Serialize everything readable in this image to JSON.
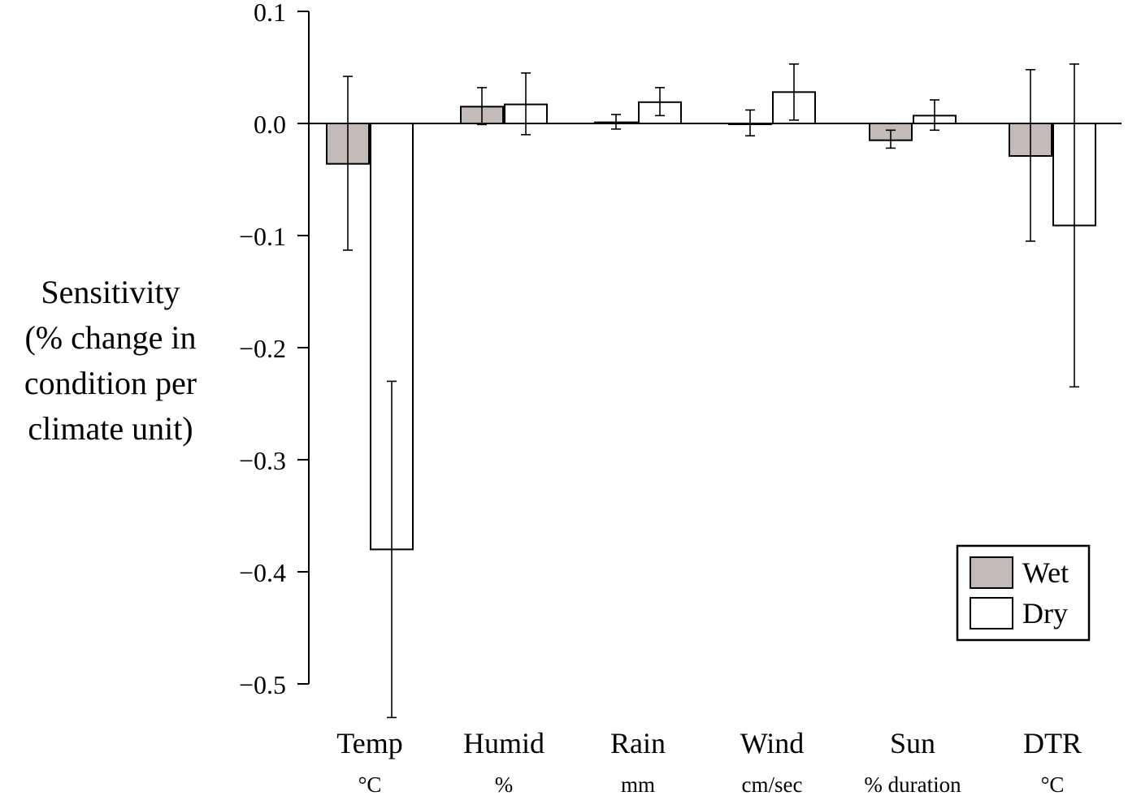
{
  "chart_data": {
    "type": "bar",
    "ylabel_lines": [
      "Sensitivity",
      "(% change in",
      "condition per",
      "climate unit)"
    ],
    "ylim": [
      -0.5,
      0.1
    ],
    "yticks": [
      0.1,
      0.0,
      -0.1,
      -0.2,
      -0.3,
      -0.4,
      -0.5
    ],
    "ytick_labels": [
      "0.1",
      "0.0",
      "−0.1",
      "−0.2",
      "−0.3",
      "−0.4",
      "−0.5"
    ],
    "categories": [
      "Temp",
      "Humid",
      "Rain",
      "Wind",
      "Sun",
      "DTR"
    ],
    "category_units": [
      "°C",
      "%",
      "mm",
      "cm/sec",
      "% duration",
      "°C"
    ],
    "series": [
      {
        "name": "Wet",
        "color": "#c2bbb7",
        "values": [
          -0.036,
          0.015,
          0.001,
          0.0,
          -0.015,
          -0.029
        ],
        "err_low": [
          -0.113,
          -0.001,
          -0.005,
          -0.011,
          -0.022,
          -0.105
        ],
        "err_high": [
          0.042,
          0.032,
          0.008,
          0.012,
          -0.006,
          0.048
        ]
      },
      {
        "name": "Dry",
        "color": "#ffffff",
        "values": [
          -0.38,
          0.017,
          0.019,
          0.028,
          0.007,
          -0.091
        ],
        "err_low": [
          -0.53,
          -0.01,
          0.007,
          0.003,
          -0.006,
          -0.235
        ],
        "err_high": [
          -0.23,
          0.045,
          0.032,
          0.053,
          0.021,
          0.053
        ]
      }
    ],
    "legend": {
      "position": "bottom-right",
      "entries": [
        "Wet",
        "Dry"
      ]
    },
    "grid": false
  }
}
